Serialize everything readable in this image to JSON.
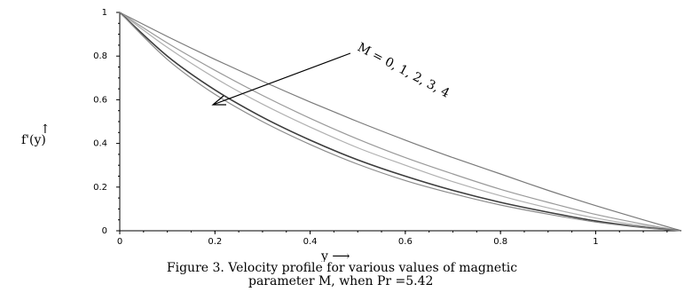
{
  "chart_data": {
    "type": "line",
    "title": "",
    "xlabel": "y ⟶",
    "ylabel": "f'(y)",
    "ylabel_arrow": "↑",
    "xlim": [
      0,
      1.18
    ],
    "ylim": [
      0,
      1
    ],
    "x_ticks": [
      "0",
      "0.2",
      "0.4",
      "0.6",
      "0.8",
      "1"
    ],
    "x_tick_values": [
      0,
      0.2,
      0.4,
      0.6,
      0.8,
      1
    ],
    "y_ticks": [
      "0",
      "0.2",
      "0.4",
      "0.6",
      "0.8",
      "1"
    ],
    "y_tick_values": [
      0,
      0.2,
      0.4,
      0.6,
      0.8,
      1
    ],
    "grid": false,
    "annotation": "M = 0, 1, 2, 3, 4",
    "x": [
      0,
      0.1,
      0.2,
      0.3,
      0.4,
      0.5,
      0.6,
      0.7,
      0.8,
      0.9,
      1.0,
      1.1,
      1.18
    ],
    "series": [
      {
        "values": [
          1,
          0.89,
          0.785,
          0.685,
          0.59,
          0.5,
          0.415,
          0.335,
          0.26,
          0.185,
          0.115,
          0.05,
          0
        ],
        "color": "#7a7a7a"
      },
      {
        "values": [
          1,
          0.86,
          0.735,
          0.62,
          0.515,
          0.42,
          0.335,
          0.26,
          0.19,
          0.13,
          0.075,
          0.03,
          0
        ],
        "color": "#9a9a9a"
      },
      {
        "values": [
          1,
          0.84,
          0.7,
          0.58,
          0.475,
          0.38,
          0.3,
          0.225,
          0.16,
          0.105,
          0.058,
          0.022,
          0
        ],
        "color": "#b0b0b0"
      },
      {
        "values": [
          1,
          0.8,
          0.645,
          0.52,
          0.415,
          0.325,
          0.25,
          0.185,
          0.13,
          0.085,
          0.045,
          0.016,
          0
        ],
        "color": "#3c3c3c"
      },
      {
        "values": [
          1,
          0.785,
          0.625,
          0.5,
          0.395,
          0.305,
          0.23,
          0.17,
          0.118,
          0.076,
          0.04,
          0.014,
          0
        ],
        "color": "#8a8a8a"
      }
    ]
  },
  "caption": {
    "line1": "Figure 3. Velocity profile for various values of magnetic",
    "line2": "parameter M, when Pr =5.42"
  }
}
